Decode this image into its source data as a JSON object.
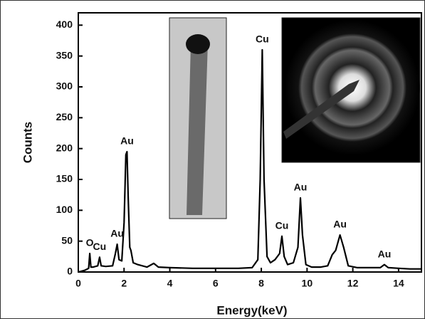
{
  "chart_data": {
    "type": "line",
    "x_label": "Energy(keV)",
    "y_label": "Counts",
    "xlim": [
      0,
      15
    ],
    "xticks": [
      0,
      2,
      4,
      6,
      8,
      10,
      12,
      14
    ],
    "ylim": [
      0,
      420
    ],
    "yticks": [
      0,
      50,
      100,
      150,
      200,
      250,
      300,
      350,
      400
    ],
    "grid": false,
    "color": "#000000",
    "x": [
      0,
      0.3,
      0.45,
      0.5,
      0.55,
      0.65,
      0.85,
      0.93,
      1.0,
      1.2,
      1.5,
      1.62,
      1.7,
      1.78,
      1.9,
      2.0,
      2.08,
      2.13,
      2.18,
      2.25,
      2.3,
      2.4,
      2.6,
      3.0,
      3.3,
      3.5,
      4,
      5,
      6,
      7,
      7.6,
      7.85,
      7.95,
      8.04,
      8.12,
      8.25,
      8.4,
      8.6,
      8.8,
      8.9,
      9.0,
      9.15,
      9.4,
      9.6,
      9.71,
      9.8,
      9.95,
      10.2,
      10.6,
      10.9,
      11.1,
      11.25,
      11.44,
      11.6,
      11.8,
      12.2,
      12.8,
      13.2,
      13.38,
      13.55,
      14,
      14.5,
      15
    ],
    "values": [
      0,
      3,
      6,
      30,
      8,
      8,
      10,
      24,
      10,
      9,
      10,
      30,
      45,
      20,
      18,
      80,
      190,
      195,
      120,
      40,
      35,
      15,
      12,
      8,
      14,
      8,
      7,
      6,
      6,
      6,
      7,
      20,
      150,
      360,
      150,
      25,
      15,
      20,
      30,
      58,
      25,
      12,
      15,
      40,
      120,
      60,
      12,
      8,
      8,
      10,
      28,
      35,
      60,
      40,
      10,
      7,
      7,
      7,
      12,
      7,
      6,
      5,
      5
    ],
    "annotations": [
      {
        "text": "O",
        "x": 0.5,
        "y": 30
      },
      {
        "text": "Cu",
        "x": 0.93,
        "y": 24
      },
      {
        "text": "Au",
        "x": 1.7,
        "y": 45
      },
      {
        "text": "Au",
        "x": 2.13,
        "y": 195
      },
      {
        "text": "Cu",
        "x": 8.04,
        "y": 360
      },
      {
        "text": "Cu",
        "x": 8.9,
        "y": 58
      },
      {
        "text": "Au",
        "x": 9.71,
        "y": 120
      },
      {
        "text": "Au",
        "x": 11.44,
        "y": 60
      },
      {
        "text": "Au",
        "x": 13.38,
        "y": 12
      }
    ]
  }
}
